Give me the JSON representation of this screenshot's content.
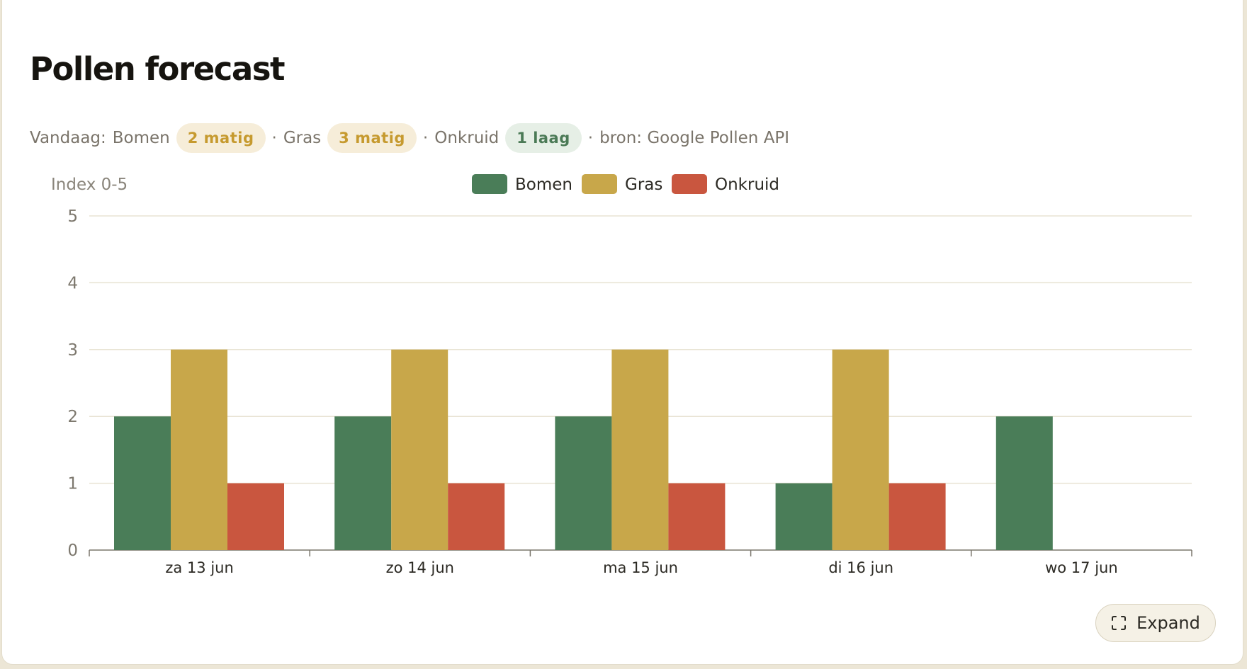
{
  "card": {
    "title": "Pollen forecast",
    "summary": {
      "prefix": "Vandaag:",
      "items": [
        {
          "label": "Bomen",
          "value": "2 matig",
          "level": "matig"
        },
        {
          "label": "Gras",
          "value": "3 matig",
          "level": "matig"
        },
        {
          "label": "Onkruid",
          "value": "1 laag",
          "level": "laag"
        }
      ],
      "source": "bron: Google Pollen API",
      "separator": "·"
    },
    "expand_label": "Expand"
  },
  "colors": {
    "bomen": "#4a7d58",
    "gras": "#c8a74a",
    "onkruid": "#c9563f",
    "matig_text": "#c69a2f",
    "matig_bg": "#f6edd9",
    "laag_text": "#4b7a56",
    "laag_bg": "#e6efe6"
  },
  "chart_data": {
    "type": "bar",
    "ylabel": "Index 0-5",
    "ylim": [
      0,
      5
    ],
    "yticks": [
      "0",
      "1",
      "2",
      "3",
      "4",
      "5"
    ],
    "categories": [
      "za 13 jun",
      "zo 14 jun",
      "ma 15 jun",
      "di 16 jun",
      "wo 17 jun"
    ],
    "series": [
      {
        "name": "Bomen",
        "color": "#4a7d58",
        "values": [
          2,
          2,
          2,
          1,
          2
        ]
      },
      {
        "name": "Gras",
        "color": "#c8a74a",
        "values": [
          3,
          3,
          3,
          3,
          null
        ]
      },
      {
        "name": "Onkruid",
        "color": "#c9563f",
        "values": [
          1,
          1,
          1,
          1,
          null
        ]
      }
    ],
    "legend_position": "top-center",
    "grid": true
  }
}
